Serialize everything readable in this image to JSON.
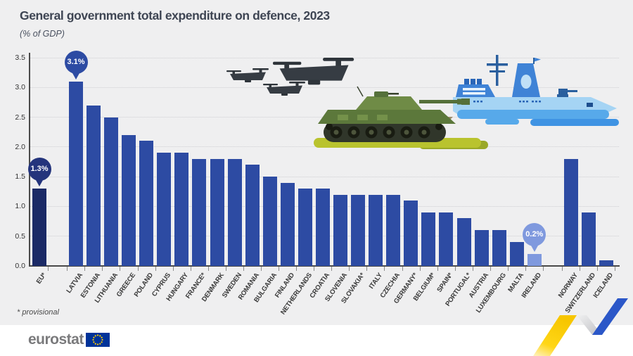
{
  "header": {
    "title": "General government total expenditure on defence, 2023",
    "subtitle": "(% of GDP)"
  },
  "footnote": "* provisional",
  "logo": {
    "text": "eurostat",
    "flag_icon": "eu-flag-icon"
  },
  "colors": {
    "background": "#efeff0",
    "footer_background": "#ffffff",
    "bar_member": "#2d4ba3",
    "bar_eu": "#1b2a66",
    "bar_highlight": "#7f99de",
    "callout_eu": "#24347c",
    "title_text": "#3e4553",
    "axis_text": "#333333",
    "gridline": "#cfcfd3",
    "axis_line": "#4a4a4a",
    "logo_text": "#7a7a7c",
    "flag_blue": "#003399",
    "flag_stars": "#ffcc00",
    "ribbon_yellow": "#ffd617",
    "ribbon_blue": "#2b57c8"
  },
  "decorations": [
    "drone-icon",
    "drone-icon",
    "drone-icon",
    "tank-icon",
    "warship-icon",
    "ribbon-graphic"
  ],
  "chart_data": {
    "type": "bar",
    "title": "General government total expenditure on defence, 2023",
    "ylabel": "(% of GDP)",
    "ylim": [
      0,
      3.5
    ],
    "yticks": [
      "0.0",
      "0.5",
      "1.0",
      "1.5",
      "2.0",
      "2.5",
      "3.0",
      "3.5"
    ],
    "grid": "horizontal-dotted",
    "legend": "none",
    "bars": [
      {
        "label": "EU*",
        "value": 1.3,
        "style": "eu",
        "gap_before": false
      },
      {
        "label": "LATVIA",
        "value": 3.1,
        "style": "member",
        "gap_before": true
      },
      {
        "label": "ESTONIA",
        "value": 2.7,
        "style": "member",
        "gap_before": false
      },
      {
        "label": "LITHUANIA",
        "value": 2.5,
        "style": "member",
        "gap_before": false
      },
      {
        "label": "GREECE",
        "value": 2.2,
        "style": "member",
        "gap_before": false
      },
      {
        "label": "POLAND",
        "value": 2.1,
        "style": "member",
        "gap_before": false
      },
      {
        "label": "CYPRUS",
        "value": 1.9,
        "style": "member",
        "gap_before": false
      },
      {
        "label": "HUNGARY",
        "value": 1.9,
        "style": "member",
        "gap_before": false
      },
      {
        "label": "FRANCE*",
        "value": 1.8,
        "style": "member",
        "gap_before": false
      },
      {
        "label": "DENMARK",
        "value": 1.8,
        "style": "member",
        "gap_before": false
      },
      {
        "label": "SWEDEN",
        "value": 1.8,
        "style": "member",
        "gap_before": false
      },
      {
        "label": "ROMANIA",
        "value": 1.7,
        "style": "member",
        "gap_before": false
      },
      {
        "label": "BULGARIA",
        "value": 1.5,
        "style": "member",
        "gap_before": false
      },
      {
        "label": "FINLAND",
        "value": 1.4,
        "style": "member",
        "gap_before": false
      },
      {
        "label": "NETHERLANDS",
        "value": 1.3,
        "style": "member",
        "gap_before": false
      },
      {
        "label": "CROATIA",
        "value": 1.3,
        "style": "member",
        "gap_before": false
      },
      {
        "label": "SLOVENIA",
        "value": 1.2,
        "style": "member",
        "gap_before": false
      },
      {
        "label": "SLOVAKIA*",
        "value": 1.2,
        "style": "member",
        "gap_before": false
      },
      {
        "label": "ITALY",
        "value": 1.2,
        "style": "member",
        "gap_before": false
      },
      {
        "label": "CZECHIA",
        "value": 1.2,
        "style": "member",
        "gap_before": false
      },
      {
        "label": "GERMANY*",
        "value": 1.1,
        "style": "member",
        "gap_before": false
      },
      {
        "label": "BELGIUM*",
        "value": 0.9,
        "style": "member",
        "gap_before": false
      },
      {
        "label": "SPAIN*",
        "value": 0.9,
        "style": "member",
        "gap_before": false
      },
      {
        "label": "PORTUGAL*",
        "value": 0.8,
        "style": "member",
        "gap_before": false
      },
      {
        "label": "AUSTRIA",
        "value": 0.6,
        "style": "member",
        "gap_before": false
      },
      {
        "label": "LUXEMBOURG",
        "value": 0.6,
        "style": "member",
        "gap_before": false
      },
      {
        "label": "MALTA",
        "value": 0.4,
        "style": "member",
        "gap_before": false
      },
      {
        "label": "IRELAND",
        "value": 0.2,
        "style": "highlight",
        "gap_before": false
      },
      {
        "label": "NORWAY",
        "value": 1.8,
        "style": "member",
        "gap_before": true
      },
      {
        "label": "SWITZERLAND",
        "value": 0.9,
        "style": "member",
        "gap_before": false
      },
      {
        "label": "ICELAND",
        "value": 0.1,
        "style": "member",
        "gap_before": false
      }
    ],
    "annotations": [
      {
        "bar": "EU*",
        "label": "1.3%",
        "style": "eu"
      },
      {
        "bar": "LATVIA",
        "label": "3.1%",
        "style": "member"
      },
      {
        "bar": "IRELAND",
        "label": "0.2%",
        "style": "highlight"
      }
    ]
  }
}
